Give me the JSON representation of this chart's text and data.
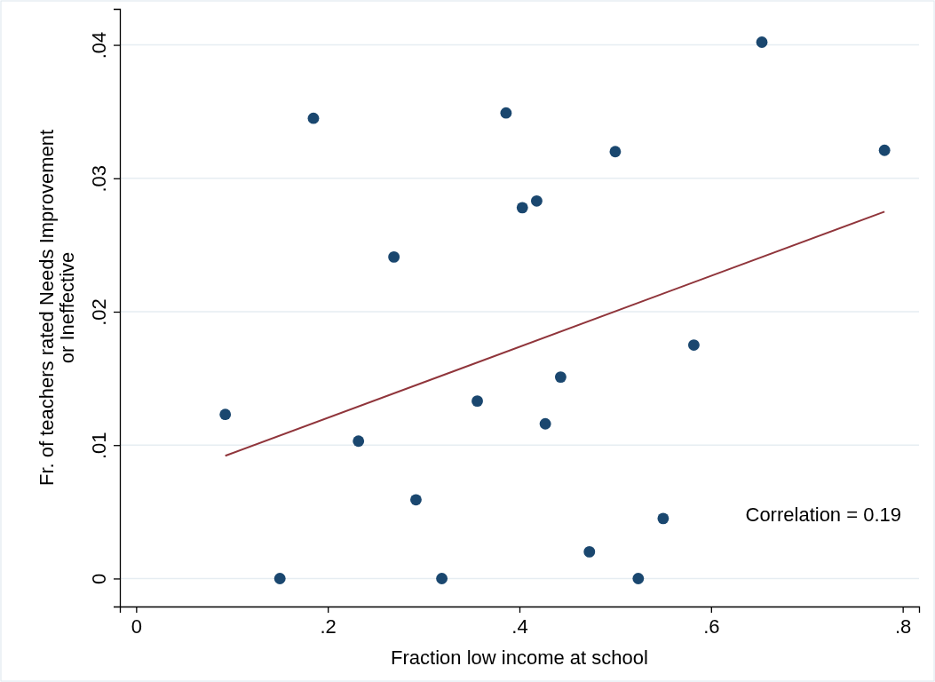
{
  "chart_data": {
    "type": "scatter",
    "xlabel": "Fraction low income at school",
    "ylabel": "Fr. of teachers rated Needs Improvement\nor Ineffective",
    "xlim": [
      -0.017,
      0.817
    ],
    "ylim": [
      -0.0021,
      0.0427
    ],
    "xticks": [
      0,
      {
        "value": 0.2,
        "label": ".2"
      },
      {
        "value": 0.4,
        "label": ".4"
      },
      {
        "value": 0.6,
        "label": ".6"
      },
      {
        "value": 0.8,
        "label": ".8"
      }
    ],
    "yticks": [
      0,
      {
        "value": 0.01,
        "label": ".01"
      },
      {
        "value": 0.02,
        "label": ".02"
      },
      {
        "value": 0.03,
        "label": ".03"
      },
      {
        "value": 0.04,
        "label": ".04"
      }
    ],
    "grid": "y",
    "marker": "circle",
    "series": [
      {
        "color": "#1a476f",
        "x": [
          0.093,
          0.15,
          0.185,
          0.232,
          0.269,
          0.292,
          0.319,
          0.356,
          0.386,
          0.403,
          0.418,
          0.427,
          0.443,
          0.473,
          0.5,
          0.524,
          0.55,
          0.582,
          0.653,
          0.781
        ],
        "values": [
          0.0123,
          0,
          0.0345,
          0.0103,
          0.0241,
          0.0059,
          0,
          0.0133,
          0.0349,
          0.0278,
          0.0283,
          0.0116,
          0.0151,
          0.002,
          0.032,
          0,
          0.0045,
          0.0175,
          0.0402,
          0.0321
        ]
      },
      {
        "type": "line",
        "color": "#90353b",
        "marker": "none",
        "x": [
          0.093,
          0.781
        ],
        "values": [
          0.0092,
          0.0275
        ]
      }
    ],
    "annotations": [
      "Correlation = 0.19"
    ]
  }
}
